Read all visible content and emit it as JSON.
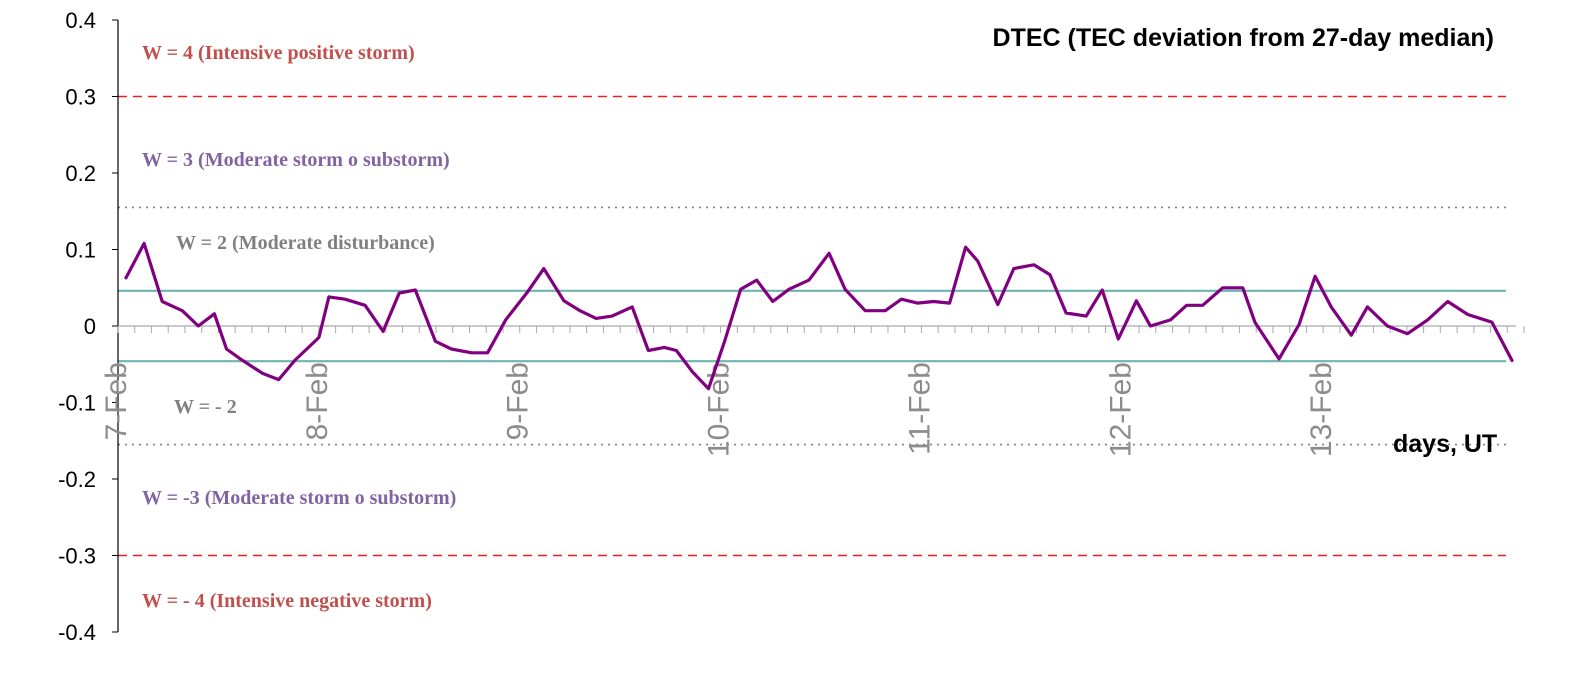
{
  "chart_data": {
    "type": "line",
    "title": "DTEC (TEC deviation from 27-day median)",
    "xlabel": "days, UT",
    "ylabel": "",
    "ylim": [
      -0.4,
      0.4
    ],
    "yticks": [
      "0.4",
      "0.3",
      "0.2",
      "0.1",
      "0",
      "-0.1",
      "-0.2",
      "-0.3",
      "-0.4"
    ],
    "ytick_values": [
      0.4,
      0.3,
      0.2,
      0.1,
      0,
      -0.1,
      -0.2,
      -0.3,
      -0.4
    ],
    "xlim": [
      0,
      6.96
    ],
    "x_tick_labels": [
      "7-Feb",
      "8-Feb",
      "9-Feb",
      "10-Feb",
      "11-Feb",
      "12-Feb",
      "13-Feb"
    ],
    "x_tick_values": [
      0,
      1,
      2,
      3,
      4,
      5,
      6
    ],
    "grid": false,
    "series": [
      {
        "color": "#800080",
        "x": [
          0.04,
          0.13,
          0.22,
          0.32,
          0.4,
          0.48,
          0.54,
          0.62,
          0.72,
          0.8,
          0.88,
          1.0,
          1.05,
          1.13,
          1.23,
          1.32,
          1.4,
          1.48,
          1.58,
          1.66,
          1.76,
          1.84,
          1.93,
          2.04,
          2.12,
          2.22,
          2.3,
          2.38,
          2.46,
          2.56,
          2.64,
          2.72,
          2.78,
          2.86,
          2.94,
          3.02,
          3.1,
          3.18,
          3.26,
          3.34,
          3.44,
          3.54,
          3.62,
          3.72,
          3.82,
          3.9,
          3.98,
          4.06,
          4.14,
          4.22,
          4.28,
          4.38,
          4.46,
          4.56,
          4.64,
          4.72,
          4.82,
          4.9,
          4.98,
          5.07,
          5.14,
          5.24,
          5.32,
          5.4,
          5.5,
          5.6,
          5.66,
          5.78,
          5.88,
          5.96,
          6.04,
          6.14,
          6.22,
          6.32,
          6.42,
          6.52,
          6.62,
          6.72,
          6.84,
          6.94
        ],
        "y": [
          0.063,
          0.108,
          0.032,
          0.02,
          0.0,
          0.016,
          -0.03,
          -0.045,
          -0.062,
          -0.07,
          -0.045,
          -0.015,
          0.038,
          0.035,
          0.027,
          -0.007,
          0.043,
          0.047,
          -0.02,
          -0.03,
          -0.035,
          -0.035,
          0.008,
          0.045,
          0.075,
          0.033,
          0.02,
          0.01,
          0.013,
          0.025,
          -0.032,
          -0.028,
          -0.032,
          -0.06,
          -0.082,
          -0.02,
          0.048,
          0.06,
          0.032,
          0.048,
          0.06,
          0.095,
          0.048,
          0.02,
          0.02,
          0.035,
          0.03,
          0.032,
          0.03,
          0.103,
          0.085,
          0.028,
          0.075,
          0.08,
          0.067,
          0.017,
          0.013,
          0.047,
          -0.017,
          0.033,
          0.0,
          0.008,
          0.027,
          0.027,
          0.05,
          0.05,
          0.005,
          -0.043,
          0.002,
          0.065,
          0.025,
          -0.012,
          0.025,
          0.0,
          -0.01,
          0.008,
          0.032,
          0.015,
          0.005,
          -0.045
        ]
      }
    ],
    "reference_lines": [
      {
        "y": 0.3,
        "style": "dashed",
        "color": "#ee1c1c"
      },
      {
        "y": 0.155,
        "style": "dotted",
        "color": "#808080"
      },
      {
        "y": 0.046,
        "style": "solid",
        "color": "#6fb3b3"
      },
      {
        "y": -0.046,
        "style": "solid",
        "color": "#6fb3b3"
      },
      {
        "y": -0.155,
        "style": "dotted",
        "color": "#808080"
      },
      {
        "y": -0.3,
        "style": "dashed",
        "color": "#ee1c1c"
      }
    ],
    "annotations": [
      {
        "text": "W = 4 (Intensive positive storm)",
        "color": "#c0504d"
      },
      {
        "text": "W = 3 (Moderate storm o substorm)",
        "color": "#8064a2"
      },
      {
        "text": "W = 2 (Moderate disturbance)",
        "color": "#808080"
      },
      {
        "text": "W = - 2",
        "color": "#808080"
      },
      {
        "text": "W = -3 (Moderate storm o substorm)",
        "color": "#8064a2"
      },
      {
        "text": "W = - 4 (Intensive negative storm)",
        "color": "#c0504d"
      }
    ]
  }
}
